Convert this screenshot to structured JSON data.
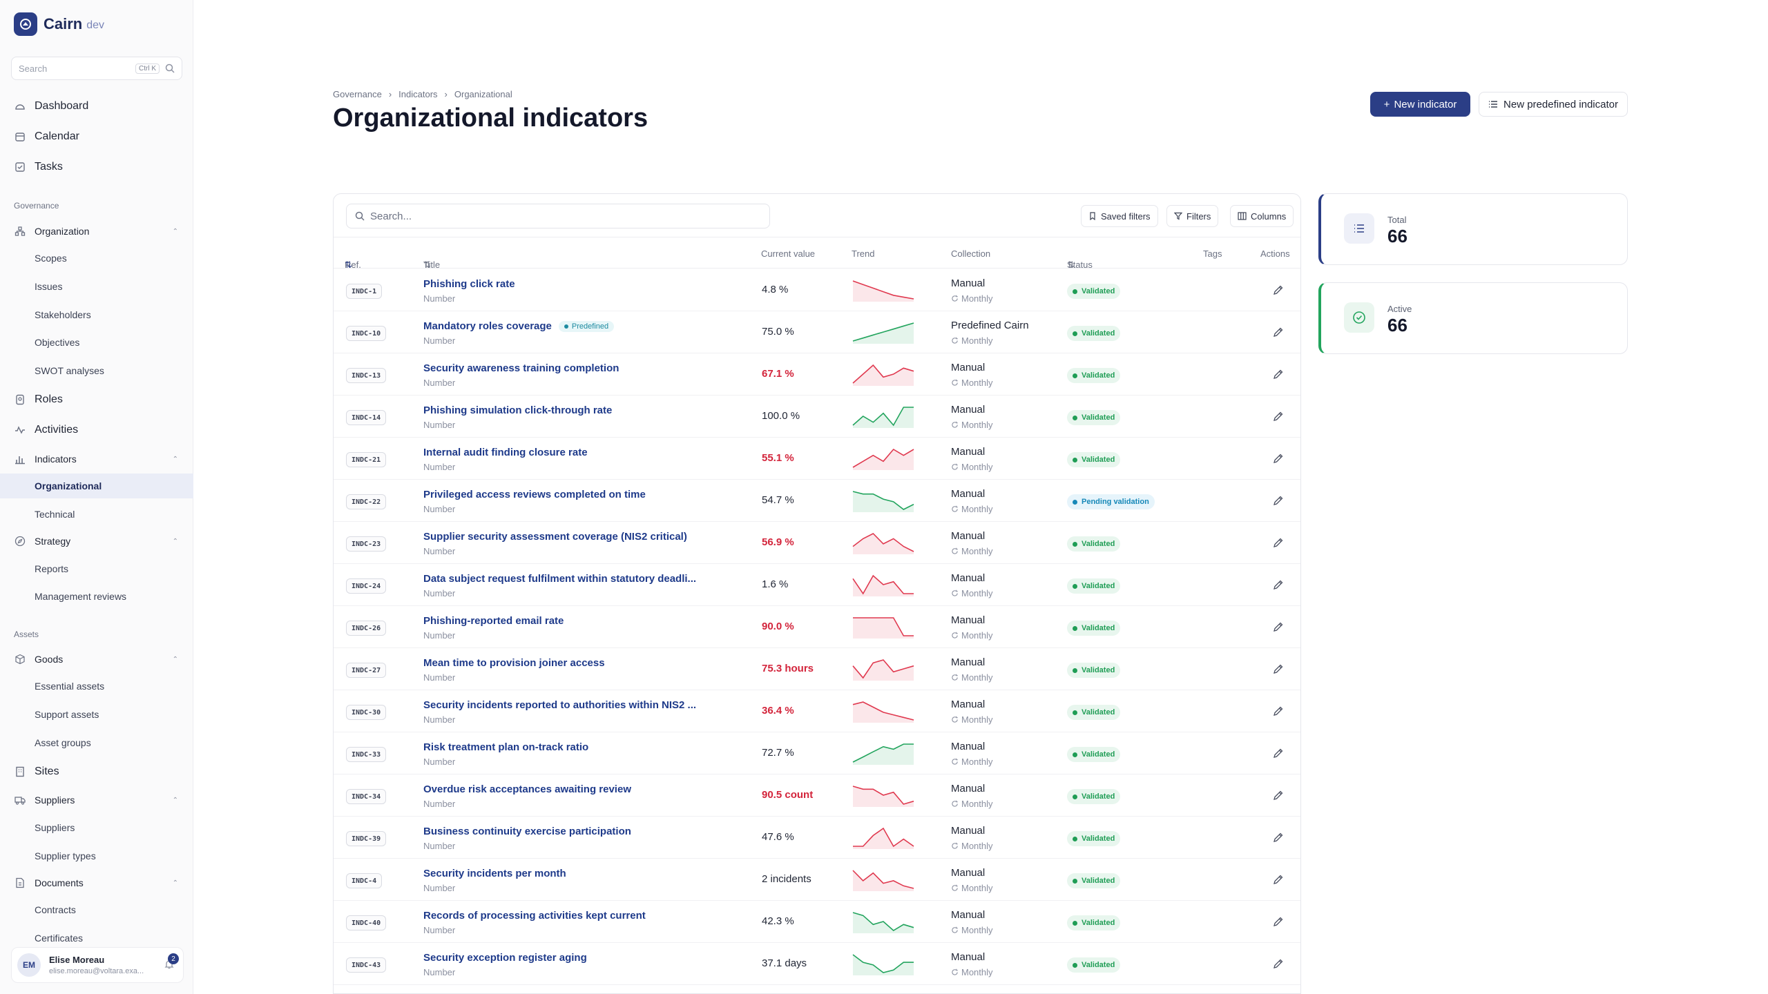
{
  "app": {
    "name": "Cairn",
    "env": "dev"
  },
  "sidebar": {
    "search_placeholder": "Search",
    "search_shortcut": "Ctrl K",
    "top": [
      {
        "label": "Dashboard",
        "icon": "dashboard-icon"
      },
      {
        "label": "Calendar",
        "icon": "calendar-icon"
      },
      {
        "label": "Tasks",
        "icon": "tasks-icon"
      }
    ],
    "governance_label": "Governance",
    "organization": {
      "label": "Organization",
      "children": [
        "Scopes",
        "Issues",
        "Stakeholders",
        "Objectives",
        "SWOT analyses"
      ]
    },
    "roles": "Roles",
    "activities": "Activities",
    "indicators": {
      "label": "Indicators",
      "children": [
        "Organizational",
        "Technical"
      ],
      "active": "Organizational"
    },
    "strategy": {
      "label": "Strategy",
      "children": [
        "Reports",
        "Management reviews"
      ]
    },
    "assets_label": "Assets",
    "goods": {
      "label": "Goods",
      "children": [
        "Essential assets",
        "Support assets",
        "Asset groups"
      ]
    },
    "sites": "Sites",
    "suppliers": {
      "label": "Suppliers",
      "children": [
        "Suppliers",
        "Supplier types"
      ]
    },
    "documents": {
      "label": "Documents",
      "children": [
        "Contracts",
        "Certificates"
      ]
    },
    "user": {
      "initials": "EM",
      "name": "Elise Moreau",
      "email": "elise.moreau@voltara.exa...",
      "notifications": "2"
    }
  },
  "header": {
    "breadcrumb": [
      "Governance",
      "Indicators",
      "Organizational"
    ],
    "title": "Organizational indicators",
    "new_indicator": "New indicator",
    "new_predefined": "New predefined indicator"
  },
  "toolbar": {
    "search_placeholder": "Search...",
    "saved_filters": "Saved filters",
    "filters": "Filters",
    "columns": "Columns"
  },
  "columns": {
    "ref": "Ref.",
    "title": "Title",
    "current_value": "Current value",
    "trend": "Trend",
    "collection": "Collection",
    "status": "Status",
    "tags": "Tags",
    "actions": "Actions"
  },
  "colors": {
    "accent": "#2b3e86",
    "good": "#22a45d",
    "bad": "#e0394f",
    "pending": "#1688b8"
  },
  "rows": [
    {
      "ref": "INDC-1",
      "title": "Phishing click rate",
      "type": "Number",
      "value": "4.8 %",
      "bad": false,
      "trend": "down",
      "series": [
        9,
        8,
        7,
        6,
        5,
        4.5,
        4
      ],
      "collection": "Manual",
      "frequency": "Monthly",
      "status": "Validated"
    },
    {
      "ref": "INDC-10",
      "title": "Mandatory roles coverage",
      "predefined": "Predefined",
      "type": "Number",
      "value": "75.0 %",
      "bad": false,
      "trend": "up",
      "series": [
        2,
        3,
        4,
        5,
        6,
        7,
        8
      ],
      "collection": "Predefined Cairn",
      "frequency": "Monthly",
      "status": "Validated"
    },
    {
      "ref": "INDC-13",
      "title": "Security awareness training completion",
      "type": "Number",
      "value": "67.1 %",
      "bad": true,
      "trend": "down",
      "series": [
        3,
        6,
        9,
        5,
        6,
        8,
        7
      ],
      "collection": "Manual",
      "frequency": "Monthly",
      "status": "Validated"
    },
    {
      "ref": "INDC-14",
      "title": "Phishing simulation click-through rate",
      "type": "Number",
      "value": "100.0 %",
      "bad": false,
      "trend": "up",
      "series": [
        3,
        6,
        4,
        7,
        3,
        9,
        9
      ],
      "collection": "Manual",
      "frequency": "Monthly",
      "status": "Validated"
    },
    {
      "ref": "INDC-21",
      "title": "Internal audit finding closure rate",
      "type": "Number",
      "value": "55.1 %",
      "bad": true,
      "trend": "down",
      "series": [
        2,
        4,
        6,
        4,
        8,
        6,
        8
      ],
      "collection": "Manual",
      "frequency": "Monthly",
      "status": "Validated"
    },
    {
      "ref": "INDC-22",
      "title": "Privileged access reviews completed on time",
      "type": "Number",
      "value": "54.7 %",
      "bad": false,
      "trend": "up",
      "series": [
        9,
        8,
        8,
        6,
        5,
        2,
        4
      ],
      "collection": "Manual",
      "frequency": "Monthly",
      "status": "Pending validation"
    },
    {
      "ref": "INDC-23",
      "title": "Supplier security assessment coverage (NIS2 critical)",
      "type": "Number",
      "value": "56.9 %",
      "bad": true,
      "trend": "down",
      "series": [
        4,
        7,
        9,
        5,
        7,
        4,
        2
      ],
      "collection": "Manual",
      "frequency": "Monthly",
      "status": "Validated"
    },
    {
      "ref": "INDC-24",
      "title": "Data subject request fulfilment within statutory deadli...",
      "type": "Number",
      "value": "1.6 %",
      "bad": false,
      "trend": "down",
      "series": [
        7,
        2,
        8,
        5,
        6,
        2,
        2
      ],
      "collection": "Manual",
      "frequency": "Monthly",
      "status": "Validated"
    },
    {
      "ref": "INDC-26",
      "title": "Phishing-reported email rate",
      "type": "Number",
      "value": "90.0 %",
      "bad": true,
      "trend": "down",
      "series": [
        8,
        8,
        8,
        8,
        8,
        2,
        2
      ],
      "collection": "Manual",
      "frequency": "Monthly",
      "status": "Validated"
    },
    {
      "ref": "INDC-27",
      "title": "Mean time to provision joiner access",
      "type": "Number",
      "value": "75.3 hours",
      "bad": true,
      "trend": "down",
      "series": [
        6,
        2,
        7,
        8,
        4,
        5,
        6
      ],
      "collection": "Manual",
      "frequency": "Monthly",
      "status": "Validated"
    },
    {
      "ref": "INDC-30",
      "title": "Security incidents reported to authorities within NIS2 ...",
      "type": "Number",
      "value": "36.4 %",
      "bad": true,
      "trend": "down",
      "series": [
        7,
        8,
        6,
        4,
        3,
        2,
        1
      ],
      "collection": "Manual",
      "frequency": "Monthly",
      "status": "Validated"
    },
    {
      "ref": "INDC-33",
      "title": "Risk treatment plan on-track ratio",
      "type": "Number",
      "value": "72.7 %",
      "bad": false,
      "trend": "up",
      "series": [
        1,
        3,
        5,
        7,
        6,
        8,
        8
      ],
      "collection": "Manual",
      "frequency": "Monthly",
      "status": "Validated"
    },
    {
      "ref": "INDC-34",
      "title": "Overdue risk acceptances awaiting review",
      "type": "Number",
      "value": "90.5 count",
      "bad": true,
      "trend": "down",
      "series": [
        8,
        7,
        7,
        5,
        6,
        2,
        3
      ],
      "collection": "Manual",
      "frequency": "Monthly",
      "status": "Validated"
    },
    {
      "ref": "INDC-39",
      "title": "Business continuity exercise participation",
      "type": "Number",
      "value": "47.6 %",
      "bad": false,
      "trend": "down",
      "series": [
        3,
        3,
        6,
        8,
        3,
        5,
        3
      ],
      "collection": "Manual",
      "frequency": "Monthly",
      "status": "Validated"
    },
    {
      "ref": "INDC-4",
      "title": "Security incidents per month",
      "type": "Number",
      "value": "2 incidents",
      "bad": false,
      "trend": "down",
      "series": [
        9,
        5,
        8,
        4,
        5,
        3,
        2
      ],
      "collection": "Manual",
      "frequency": "Monthly",
      "status": "Validated"
    },
    {
      "ref": "INDC-40",
      "title": "Records of processing activities kept current",
      "type": "Number",
      "value": "42.3 %",
      "bad": false,
      "trend": "up",
      "series": [
        8,
        7,
        4,
        5,
        2,
        4,
        3
      ],
      "collection": "Manual",
      "frequency": "Monthly",
      "status": "Validated"
    },
    {
      "ref": "INDC-43",
      "title": "Security exception register aging",
      "type": "Number",
      "value": "37.1 days",
      "bad": false,
      "trend": "up",
      "series": [
        8,
        5,
        4,
        1,
        2,
        5,
        5
      ],
      "collection": "Manual",
      "frequency": "Monthly",
      "status": "Validated"
    }
  ],
  "stats": [
    {
      "label": "Total",
      "value": "66",
      "icon": "list-icon"
    },
    {
      "label": "Active",
      "value": "66",
      "icon": "check-circle-icon"
    }
  ]
}
